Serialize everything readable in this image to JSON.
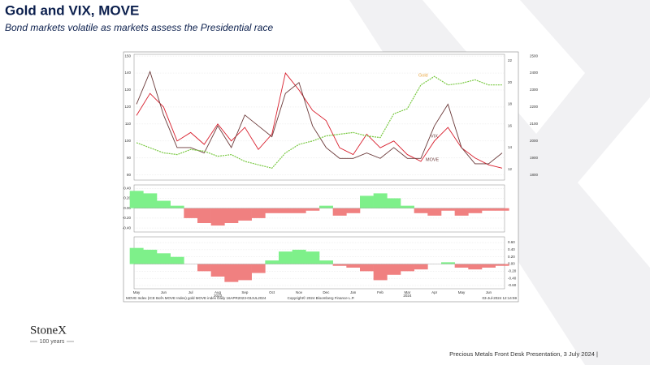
{
  "slide": {
    "title": "Gold and VIX, MOVE",
    "subtitle": "Bond markets volatile as markets assess the Presidential race",
    "logo": "StoneX",
    "tagline": "100 years",
    "footer": "Precious Metals Front Desk Presentation, 3 July 2024 |"
  },
  "chart_data": [
    {
      "type": "line",
      "categories": [
        "May",
        null,
        "Jun",
        null,
        "Jul",
        null,
        "Aug",
        null,
        "Sep",
        null,
        "Oct",
        null,
        "Nov",
        null,
        "Dec",
        null,
        "Jan",
        null,
        "Feb",
        null,
        "Mar",
        null,
        "Apr",
        null,
        "May",
        null,
        "Jun",
        null
      ],
      "year_labels": [
        "2023",
        "2024"
      ],
      "annotations": [
        "Gold",
        "VIX",
        "MOVE"
      ],
      "source_left": "MOVE Index (ICE BofA MOVE Index) gold MOVE index  Daily 16APR2023-03JUL2024",
      "source_center": "Copyright© 2024 Bloomberg Finance L.P.",
      "source_right": "03-Jul-2024 12:14:59",
      "ylim": [
        77,
        151
      ],
      "yticks": [
        150,
        140,
        130,
        120,
        110,
        100,
        90,
        80
      ],
      "y2lim": [
        11,
        22.6
      ],
      "y2ticks": [
        22,
        20,
        18,
        16,
        14,
        12
      ],
      "y3lim": [
        1770,
        2510
      ],
      "y3ticks": [
        2500,
        2400,
        2300,
        2200,
        2100,
        2000,
        1900,
        1800
      ],
      "series": [
        {
          "name": "MOVE",
          "color": "#d81e2c",
          "values": [
            115,
            128,
            120,
            100,
            105,
            98,
            110,
            100,
            108,
            95,
            104,
            140,
            130,
            118,
            112,
            96,
            92,
            104,
            96,
            100,
            92,
            88,
            100,
            108,
            96,
            90,
            86,
            84
          ]
        },
        {
          "name": "VIX",
          "color": "#6b3a3a",
          "axis": "y2",
          "values": [
            18,
            21,
            17,
            14,
            14,
            13.5,
            16,
            14,
            17,
            16,
            15,
            19,
            20,
            16,
            14,
            13,
            13,
            13.5,
            13,
            14,
            13,
            13,
            16,
            18,
            14,
            12.5,
            12.5,
            13.5
          ]
        },
        {
          "name": "Gold",
          "color": "#7ac943",
          "axis": "y3",
          "values": [
            1990,
            1960,
            1930,
            1920,
            1950,
            1940,
            1910,
            1920,
            1880,
            1860,
            1840,
            1930,
            1980,
            2000,
            2030,
            2040,
            2050,
            2030,
            2020,
            2160,
            2190,
            2330,
            2380,
            2330,
            2340,
            2360,
            2330,
            2330
          ]
        }
      ]
    },
    {
      "type": "area",
      "positive_color": "#7ef08a",
      "negative_color": "#f08080",
      "ylim": [
        -0.48,
        0.47
      ],
      "yticks": [
        {
          "value": 0.4,
          "label": "0.40"
        },
        {
          "value": 0.2,
          "label": "0.20"
        },
        {
          "value": 0,
          "label": "0.00"
        },
        {
          "value": -0.2,
          "label": "-0.20"
        },
        {
          "value": -0.4,
          "label": "-0.40"
        }
      ],
      "values": [
        0.35,
        0.3,
        0.15,
        0.05,
        -0.2,
        -0.3,
        -0.35,
        -0.3,
        -0.25,
        -0.2,
        -0.1,
        -0.1,
        -0.1,
        -0.05,
        0.05,
        -0.15,
        -0.1,
        0.25,
        0.3,
        0.2,
        0.05,
        -0.1,
        -0.15,
        -0.05,
        -0.15,
        -0.1,
        -0.05,
        -0.05
      ]
    },
    {
      "type": "area",
      "positive_color": "#7ef08a",
      "negative_color": "#f08080",
      "ylim": [
        -0.69,
        0.76
      ],
      "yticks": [
        {
          "value": 0.6,
          "label": "0.60"
        },
        {
          "value": 0.4,
          "label": "0.40"
        },
        {
          "value": 0.2,
          "label": "0.20"
        },
        {
          "value": 0,
          "label": "0.00"
        },
        {
          "value": -0.2,
          "label": "-0.20"
        },
        {
          "value": -0.4,
          "label": "-0.40"
        },
        {
          "value": -0.6,
          "label": "-0.60"
        }
      ],
      "values": [
        0.45,
        0.4,
        0.3,
        0.2,
        0.0,
        -0.2,
        -0.35,
        -0.5,
        -0.45,
        -0.25,
        0.1,
        0.35,
        0.4,
        0.35,
        0.1,
        -0.05,
        -0.1,
        -0.2,
        -0.45,
        -0.3,
        -0.2,
        -0.15,
        0.0,
        0.05,
        -0.1,
        -0.15,
        -0.1,
        -0.05
      ]
    }
  ]
}
